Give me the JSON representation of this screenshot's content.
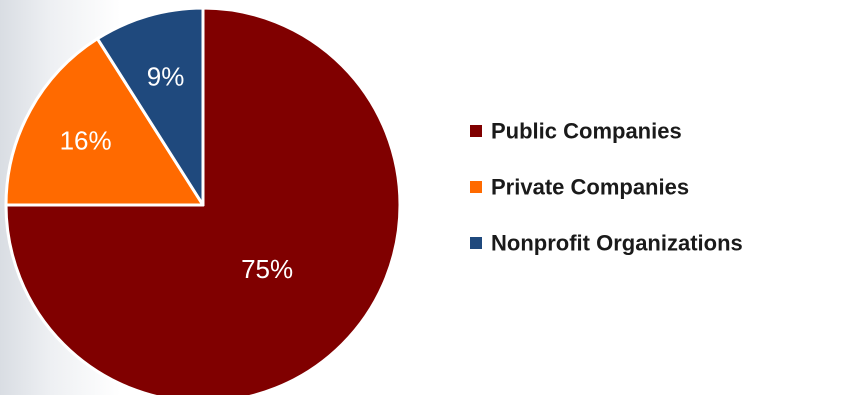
{
  "chart_data": {
    "type": "pie",
    "title": "",
    "start_angle_deg": 0,
    "direction": "clockwise",
    "legend_position": "right",
    "slices": [
      {
        "name": "Public Companies",
        "value": 75,
        "label": "75%",
        "color": "#800000"
      },
      {
        "name": "Private Companies",
        "value": 16,
        "label": "16%",
        "color": "#ff6a00"
      },
      {
        "name": "Nonprofit Organizations",
        "value": 9,
        "label": "9%",
        "color": "#1f497d"
      }
    ]
  }
}
